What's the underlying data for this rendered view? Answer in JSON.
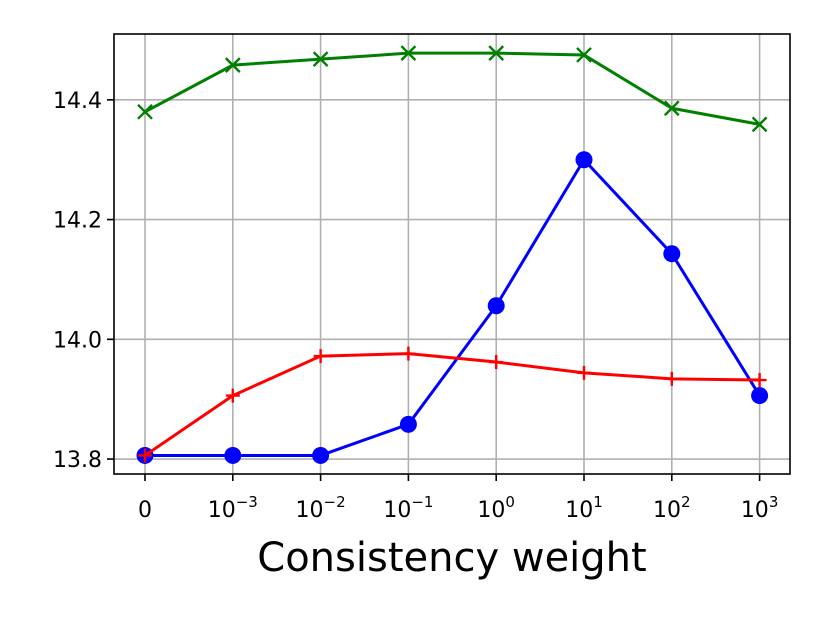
{
  "chart_data": {
    "type": "line",
    "title": "",
    "xlabel": "Consistency weight",
    "ylabel": "",
    "categories": [
      "0",
      "10^-3",
      "10^-2",
      "10^-1",
      "10^0",
      "10^1",
      "10^2",
      "10^3"
    ],
    "x_tick_labels": [
      {
        "base": "0",
        "exp": ""
      },
      {
        "base": "10",
        "exp": "−3"
      },
      {
        "base": "10",
        "exp": "−2"
      },
      {
        "base": "10",
        "exp": "−1"
      },
      {
        "base": "10",
        "exp": "0"
      },
      {
        "base": "10",
        "exp": "1"
      },
      {
        "base": "10",
        "exp": "2"
      },
      {
        "base": "10",
        "exp": "3"
      }
    ],
    "y_ticks": [
      "13.8",
      "14.0",
      "14.2",
      "14.4"
    ],
    "ylim": [
      13.775,
      14.51
    ],
    "grid": true,
    "series": [
      {
        "color": "#008000",
        "marker": "x",
        "values": [
          14.38,
          14.458,
          14.468,
          14.478,
          14.478,
          14.475,
          14.386,
          14.359
        ]
      },
      {
        "color": "#0000ff",
        "marker": "o",
        "values": [
          13.806,
          13.806,
          13.806,
          13.858,
          14.056,
          14.3,
          14.143,
          13.906
        ]
      },
      {
        "color": "#ff0000",
        "marker": "+",
        "values": [
          13.806,
          13.906,
          13.972,
          13.976,
          13.962,
          13.944,
          13.934,
          13.932
        ]
      }
    ]
  }
}
